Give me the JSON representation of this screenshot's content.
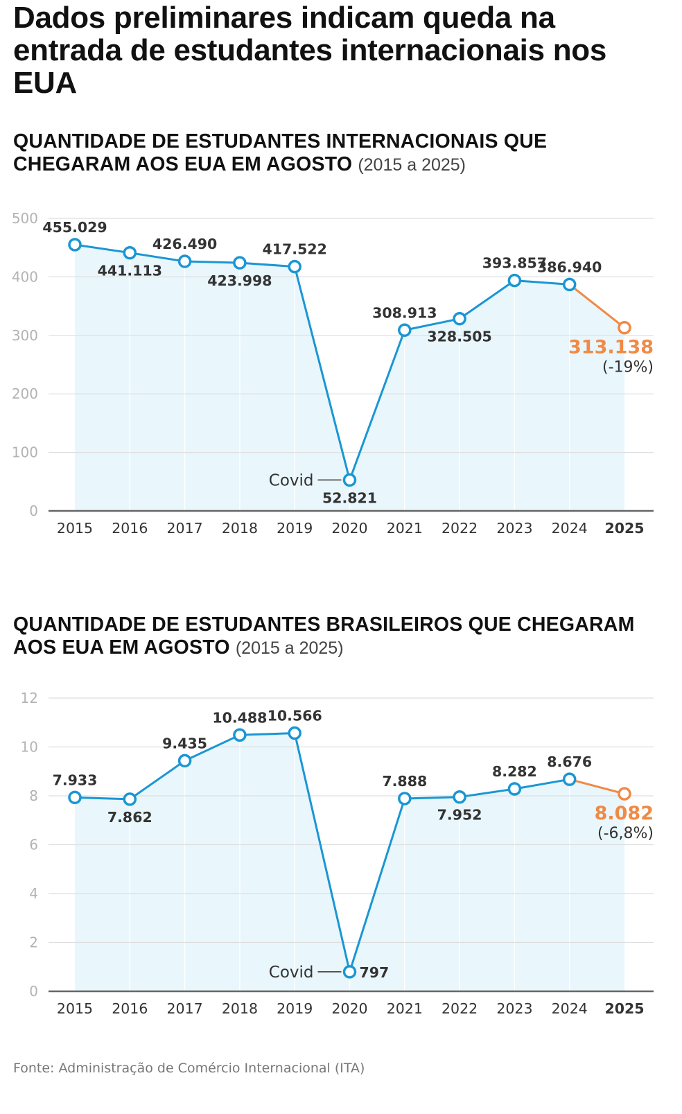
{
  "headline": "Dados preliminares indicam queda na entrada de estudantes internacionais nos EUA",
  "source": "Fonte: Administração de Comércio Internacional (ITA)",
  "colors": {
    "line": "#1a96d4",
    "highlight": "#f08a45",
    "area": "#e9f6fc",
    "grid": "#dedede",
    "axis": "#666666"
  },
  "chart_data": [
    {
      "type": "area",
      "title": "QUANTIDADE DE ESTUDANTES INTERNACIONAIS QUE CHEGARAM AOS EUA EM AGOSTO",
      "title_range": "(2015 a 2025)",
      "xlabel": "",
      "ylabel": "",
      "unit": "thousands",
      "ylim": [
        0,
        500
      ],
      "yticks": [
        0,
        100,
        200,
        300,
        400,
        500
      ],
      "ytick_labels": [
        "0",
        "100",
        "200",
        "300",
        "400",
        "500"
      ],
      "grid": true,
      "categories": [
        "2015",
        "2016",
        "2017",
        "2018",
        "2019",
        "2020",
        "2021",
        "2022",
        "2023",
        "2024",
        "2025"
      ],
      "highlight_category": "2025",
      "series": [
        {
          "name": "Estudantes internacionais",
          "values": [
            455.029,
            441.113,
            426.49,
            423.998,
            417.522,
            52.821,
            308.913,
            328.505,
            393.857,
            386.94,
            313.138
          ],
          "labels": [
            "455.029",
            "441.113",
            "426.490",
            "423.998",
            "417.522",
            "52.821",
            "308.913",
            "328.505",
            "393.857",
            "386.940",
            "313.138"
          ],
          "label_positions": [
            "above",
            "below",
            "above",
            "below",
            "above",
            "below",
            "above",
            "below",
            "above",
            "above",
            "below"
          ]
        }
      ],
      "annotations": [
        {
          "category": "2020",
          "text": "Covid"
        },
        {
          "category": "2025",
          "text": "(-19%)"
        }
      ]
    },
    {
      "type": "area",
      "title": "QUANTIDADE DE ESTUDANTES BRASILEIROS QUE CHEGARAM AOS EUA EM AGOSTO",
      "title_range": "(2015 a 2025)",
      "xlabel": "",
      "ylabel": "",
      "unit": "thousands",
      "ylim": [
        0,
        12
      ],
      "yticks": [
        0,
        2,
        4,
        6,
        8,
        10,
        12
      ],
      "ytick_labels": [
        "0",
        "2",
        "4",
        "6",
        "8",
        "10",
        "12"
      ],
      "grid": true,
      "categories": [
        "2015",
        "2016",
        "2017",
        "2018",
        "2019",
        "2020",
        "2021",
        "2022",
        "2023",
        "2024",
        "2025"
      ],
      "highlight_category": "2025",
      "series": [
        {
          "name": "Estudantes brasileiros",
          "values": [
            7.933,
            7.862,
            9.435,
            10.488,
            10.566,
            0.797,
            7.888,
            7.952,
            8.282,
            8.676,
            8.082
          ],
          "labels": [
            "7.933",
            "7.862",
            "9.435",
            "10.488",
            "10.566",
            "797",
            "7.888",
            "7.952",
            "8.282",
            "8.676",
            "8.082"
          ],
          "label_positions": [
            "above",
            "below",
            "above",
            "above",
            "above",
            "right",
            "above",
            "below",
            "above",
            "above",
            "below"
          ]
        }
      ],
      "annotations": [
        {
          "category": "2020",
          "text": "Covid"
        },
        {
          "category": "2025",
          "text": "(-6,8%)"
        }
      ]
    }
  ]
}
